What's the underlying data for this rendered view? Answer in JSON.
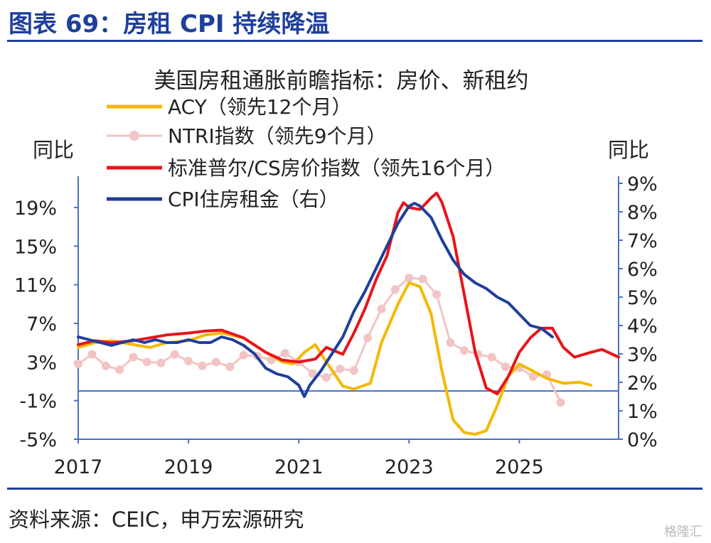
{
  "figure_title": "图表 69：房租 CPI 持续降温",
  "source_note": "资料来源：CEIC，申万宏源研究",
  "watermark": "格隆汇",
  "colors": {
    "brand": "#1f3f9a",
    "axis": "#4a6fc7",
    "acy": "#f5b800",
    "ntri": "#f2c4c4",
    "cs": "#e8141b",
    "cpi": "#1f3f9a"
  },
  "chart_data": {
    "type": "line",
    "title": "美国房租通胀前瞻指标：房价、新租约",
    "ylabel_left": "同比",
    "ylabel_right": "同比",
    "xlim": [
      2017.0,
      2026.8
    ],
    "ylim_left": [
      -5,
      21.5
    ],
    "ylim_right": [
      0,
      9
    ],
    "yticks_left": [
      "19%",
      "15%",
      "11%",
      "7%",
      "3%",
      "-1%",
      "-5%"
    ],
    "yticks_right": [
      "9%",
      "8%",
      "7%",
      "6%",
      "5%",
      "4%",
      "3%",
      "2%",
      "1%",
      "0%"
    ],
    "xticks": [
      "2017",
      "2019",
      "2021",
      "2023",
      "2025"
    ],
    "series": [
      {
        "name": "ACY（领先12个月）",
        "axis": "left",
        "color_key": "acy",
        "marker": false,
        "x": [
          2017.0,
          2017.3,
          2017.6,
          2018.0,
          2018.3,
          2018.6,
          2019.0,
          2019.3,
          2019.6,
          2020.0,
          2020.4,
          2020.7,
          2020.9,
          2021.1,
          2021.3,
          2021.5,
          2021.8,
          2022.0,
          2022.3,
          2022.5,
          2022.8,
          2023.0,
          2023.2,
          2023.4,
          2023.6,
          2023.8,
          2024.0,
          2024.2,
          2024.4,
          2024.6,
          2024.8,
          2025.0,
          2025.2,
          2025.5,
          2025.8,
          2026.1,
          2026.3
        ],
        "y": [
          4.5,
          5.0,
          5.2,
          4.8,
          4.5,
          5.0,
          5.2,
          5.8,
          6.0,
          5.5,
          4.0,
          3.0,
          2.8,
          4.0,
          4.8,
          3.0,
          0.5,
          0.2,
          0.8,
          5.0,
          9.0,
          11.2,
          10.8,
          8.0,
          2.0,
          -3.0,
          -4.3,
          -4.5,
          -4.1,
          -1.5,
          1.5,
          2.8,
          2.2,
          1.3,
          0.8,
          0.9,
          0.6
        ]
      },
      {
        "name": "NTRI指数（领先9个月）",
        "axis": "left",
        "color_key": "ntri",
        "marker": true,
        "x": [
          2017.0,
          2017.25,
          2017.5,
          2017.75,
          2018.0,
          2018.25,
          2018.5,
          2018.75,
          2019.0,
          2019.25,
          2019.5,
          2019.75,
          2020.0,
          2020.25,
          2020.5,
          2020.75,
          2021.0,
          2021.25,
          2021.5,
          2021.75,
          2022.0,
          2022.25,
          2022.5,
          2022.75,
          2023.0,
          2023.25,
          2023.5,
          2023.75,
          2024.0,
          2024.25,
          2024.5,
          2024.75,
          2025.0,
          2025.25,
          2025.5,
          2025.75
        ],
        "y": [
          2.8,
          3.8,
          2.6,
          2.2,
          3.5,
          3.0,
          2.9,
          3.8,
          3.1,
          2.6,
          3.0,
          2.5,
          3.7,
          3.6,
          3.2,
          3.9,
          3.0,
          1.8,
          1.4,
          2.3,
          2.1,
          5.5,
          8.5,
          10.5,
          11.7,
          11.6,
          10.0,
          5.0,
          4.2,
          3.8,
          3.5,
          2.5,
          2.4,
          1.5,
          1.7,
          -1.2
        ]
      },
      {
        "name": "标准普尔/CS房价指数（领先16个月）",
        "axis": "left",
        "color_key": "cs",
        "marker": false,
        "x": [
          2017.0,
          2017.3,
          2017.6,
          2018.0,
          2018.3,
          2018.6,
          2019.0,
          2019.3,
          2019.6,
          2020.0,
          2020.4,
          2020.7,
          2021.0,
          2021.3,
          2021.5,
          2021.8,
          2022.0,
          2022.2,
          2022.4,
          2022.6,
          2022.8,
          2022.9,
          2023.0,
          2023.2,
          2023.4,
          2023.5,
          2023.6,
          2023.8,
          2024.0,
          2024.2,
          2024.4,
          2024.6,
          2024.8,
          2025.0,
          2025.2,
          2025.4,
          2025.6,
          2025.8,
          2026.0,
          2026.3,
          2026.5,
          2026.8
        ],
        "y": [
          4.8,
          5.2,
          5.0,
          5.2,
          5.5,
          5.8,
          6.0,
          6.2,
          6.3,
          5.5,
          4.0,
          3.2,
          3.0,
          3.3,
          4.5,
          3.8,
          6.0,
          8.5,
          11.5,
          14.0,
          18.5,
          19.5,
          19.0,
          18.8,
          20.0,
          20.5,
          19.5,
          16.0,
          10.0,
          4.0,
          0.3,
          -0.3,
          1.5,
          4.0,
          5.5,
          6.5,
          6.5,
          4.5,
          3.5,
          4.0,
          4.3,
          3.5
        ]
      },
      {
        "name": "CPI住房租金（右）",
        "axis": "right",
        "color_key": "cpi",
        "marker": false,
        "x": [
          2017.0,
          2017.2,
          2017.4,
          2017.6,
          2017.8,
          2018.0,
          2018.2,
          2018.4,
          2018.6,
          2018.8,
          2019.0,
          2019.2,
          2019.4,
          2019.6,
          2019.8,
          2020.0,
          2020.2,
          2020.4,
          2020.6,
          2020.8,
          2021.0,
          2021.1,
          2021.2,
          2021.4,
          2021.6,
          2021.8,
          2022.0,
          2022.2,
          2022.4,
          2022.6,
          2022.8,
          2023.0,
          2023.1,
          2023.2,
          2023.3,
          2023.4,
          2023.6,
          2023.8,
          2024.0,
          2024.2,
          2024.4,
          2024.6,
          2024.8,
          2025.0,
          2025.2,
          2025.4,
          2025.6
        ],
        "y": [
          3.6,
          3.5,
          3.4,
          3.3,
          3.4,
          3.5,
          3.4,
          3.5,
          3.4,
          3.4,
          3.5,
          3.4,
          3.4,
          3.6,
          3.5,
          3.3,
          3.0,
          2.5,
          2.3,
          2.2,
          1.9,
          1.5,
          1.9,
          2.4,
          3.0,
          3.6,
          4.5,
          5.2,
          6.0,
          6.8,
          7.6,
          8.2,
          8.3,
          8.2,
          8.0,
          7.8,
          7.0,
          6.3,
          5.8,
          5.5,
          5.3,
          5.0,
          4.8,
          4.4,
          4.0,
          3.9,
          3.6
        ]
      }
    ]
  }
}
